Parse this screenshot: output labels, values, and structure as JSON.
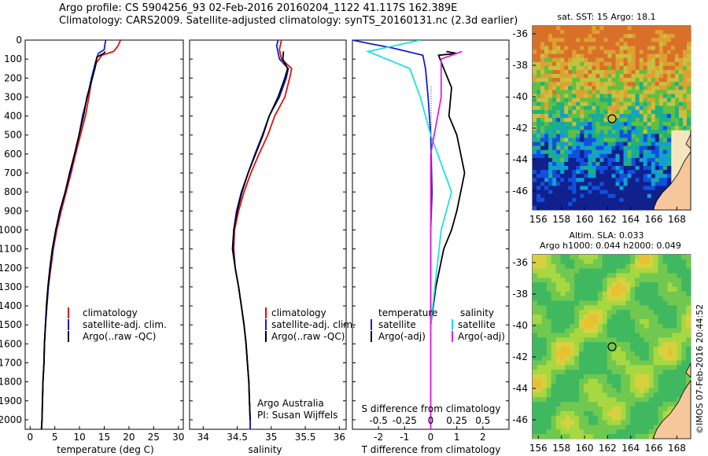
{
  "header": {
    "line1": "Argo profile: CS 5904256_93 02-Feb-2016 20160204_1122 41.117S 162.389E",
    "line2": "Climatology: CARS2009. Satellite-adjusted climatology: synTS_20160131.nc (2.3d earlier)"
  },
  "colors": {
    "climatology": "#e01010",
    "satellite": "#1020d0",
    "argo": "#000000",
    "sat_salinity": "#20e0e0",
    "argo_salinity": "#e020e0"
  },
  "chart_data": [
    {
      "id": "temperature",
      "type": "line",
      "xlabel": "temperature (deg C)",
      "xlim": [
        -1,
        31
      ],
      "xticks": [
        0,
        5,
        10,
        15,
        20,
        25,
        30
      ],
      "ylim": [
        0,
        2050
      ],
      "yticks": [
        0,
        100,
        200,
        300,
        400,
        500,
        600,
        700,
        800,
        900,
        1000,
        1100,
        1200,
        1300,
        1400,
        1500,
        1600,
        1700,
        1800,
        1900,
        2000
      ],
      "legend": [
        "climatology",
        "satellite-adj. clim.",
        "Argo(..raw -QC)"
      ],
      "series": [
        {
          "name": "climatology",
          "values": [
            [
              18.3,
              0
            ],
            [
              17.8,
              30
            ],
            [
              16.9,
              60
            ],
            [
              14.5,
              80
            ],
            [
              13.4,
              120
            ],
            [
              12.5,
              200
            ],
            [
              11.9,
              300
            ],
            [
              11.2,
              400
            ],
            [
              10.2,
              500
            ],
            [
              9.2,
              600
            ],
            [
              8.3,
              700
            ],
            [
              7.3,
              800
            ],
            [
              6.3,
              900
            ],
            [
              5.4,
              1000
            ],
            [
              4.7,
              1100
            ],
            [
              4.2,
              1200
            ],
            [
              3.7,
              1300
            ],
            [
              3.4,
              1400
            ],
            [
              3.1,
              1500
            ],
            [
              2.9,
              1600
            ],
            [
              2.8,
              1700
            ],
            [
              2.6,
              1800
            ],
            [
              2.5,
              1900
            ],
            [
              2.4,
              2000
            ],
            [
              2.3,
              2050
            ]
          ]
        },
        {
          "name": "satellite-adj. clim.",
          "values": [
            [
              15.3,
              0
            ],
            [
              15.1,
              30
            ],
            [
              15.0,
              50
            ],
            [
              13.8,
              70
            ],
            [
              13.2,
              120
            ],
            [
              12.4,
              200
            ],
            [
              11.6,
              300
            ],
            [
              10.6,
              400
            ],
            [
              9.9,
              500
            ],
            [
              9.0,
              600
            ],
            [
              8.1,
              700
            ],
            [
              7.1,
              800
            ],
            [
              6.1,
              900
            ],
            [
              5.2,
              1000
            ],
            [
              4.6,
              1100
            ],
            [
              4.1,
              1200
            ],
            [
              3.7,
              1300
            ],
            [
              3.4,
              1400
            ],
            [
              3.1,
              1500
            ],
            [
              2.9,
              1600
            ],
            [
              2.8,
              1700
            ],
            [
              2.6,
              1800
            ],
            [
              2.5,
              1900
            ],
            [
              2.4,
              2000
            ],
            [
              2.3,
              2050
            ]
          ]
        },
        {
          "name": "Argo(..raw -QC)",
          "values": [
            [
              15.2,
              60
            ],
            [
              14.9,
              70
            ],
            [
              13.5,
              90
            ],
            [
              13.1,
              150
            ],
            [
              12.3,
              230
            ],
            [
              11.5,
              300
            ],
            [
              10.8,
              400
            ],
            [
              9.9,
              500
            ],
            [
              9.0,
              600
            ],
            [
              8.0,
              700
            ],
            [
              7.1,
              800
            ],
            [
              6.0,
              900
            ],
            [
              5.2,
              1000
            ],
            [
              4.5,
              1100
            ],
            [
              4.0,
              1200
            ],
            [
              3.6,
              1300
            ],
            [
              3.3,
              1400
            ],
            [
              3.1,
              1500
            ],
            [
              2.9,
              1600
            ],
            [
              2.8,
              1700
            ],
            [
              2.6,
              1800
            ],
            [
              2.5,
              1900
            ],
            [
              2.4,
              2000
            ],
            [
              2.3,
              2050
            ]
          ]
        }
      ]
    },
    {
      "id": "salinity",
      "type": "line",
      "xlabel": "salinity",
      "xlim": [
        33.8,
        36.1
      ],
      "xticks": [
        34,
        34.5,
        35,
        35.5,
        36
      ],
      "ylim": [
        0,
        2050
      ],
      "legend": [
        "climatology",
        "satellite-adj. clim.",
        "Argo(..raw -QC)"
      ],
      "annotations": [
        "Argo Australia",
        "PI: Susan Wijffels"
      ],
      "series": [
        {
          "name": "climatology",
          "values": [
            [
              35.15,
              0
            ],
            [
              35.12,
              50
            ],
            [
              35.15,
              100
            ],
            [
              35.3,
              150
            ],
            [
              35.27,
              200
            ],
            [
              35.2,
              300
            ],
            [
              35.05,
              400
            ],
            [
              34.95,
              500
            ],
            [
              34.82,
              600
            ],
            [
              34.7,
              700
            ],
            [
              34.6,
              800
            ],
            [
              34.52,
              900
            ],
            [
              34.46,
              1000
            ],
            [
              34.45,
              1100
            ],
            [
              34.47,
              1200
            ],
            [
              34.52,
              1300
            ],
            [
              34.56,
              1400
            ],
            [
              34.6,
              1500
            ],
            [
              34.63,
              1600
            ],
            [
              34.65,
              1700
            ],
            [
              34.67,
              1800
            ],
            [
              34.68,
              1900
            ],
            [
              34.69,
              2000
            ],
            [
              34.69,
              2050
            ]
          ]
        },
        {
          "name": "satellite-adj. clim.",
          "values": [
            [
              35.1,
              0
            ],
            [
              35.08,
              30
            ],
            [
              35.12,
              100
            ],
            [
              35.25,
              150
            ],
            [
              35.22,
              200
            ],
            [
              35.12,
              300
            ],
            [
              34.97,
              400
            ],
            [
              34.87,
              500
            ],
            [
              34.76,
              600
            ],
            [
              34.66,
              700
            ],
            [
              34.56,
              800
            ],
            [
              34.49,
              900
            ],
            [
              34.45,
              1000
            ],
            [
              34.44,
              1100
            ],
            [
              34.47,
              1200
            ],
            [
              34.52,
              1300
            ],
            [
              34.56,
              1400
            ],
            [
              34.6,
              1500
            ],
            [
              34.63,
              1600
            ],
            [
              34.65,
              1700
            ],
            [
              34.67,
              1800
            ],
            [
              34.68,
              1900
            ],
            [
              34.69,
              2000
            ],
            [
              34.69,
              2050
            ]
          ]
        },
        {
          "name": "Argo(..raw -QC)",
          "values": [
            [
              35.18,
              60
            ],
            [
              35.17,
              100
            ],
            [
              35.24,
              150
            ],
            [
              35.2,
              200
            ],
            [
              35.1,
              300
            ],
            [
              34.97,
              400
            ],
            [
              34.88,
              500
            ],
            [
              34.77,
              600
            ],
            [
              34.66,
              700
            ],
            [
              34.57,
              800
            ],
            [
              34.5,
              900
            ],
            [
              34.45,
              1000
            ],
            [
              34.43,
              1100
            ],
            [
              34.47,
              1200
            ],
            [
              34.52,
              1300
            ],
            [
              34.56,
              1400
            ],
            [
              34.6,
              1500
            ],
            [
              34.63,
              1600
            ],
            [
              34.65,
              1700
            ],
            [
              34.67,
              1800
            ],
            [
              34.68,
              1900
            ],
            [
              34.69,
              2000
            ]
          ]
        }
      ]
    },
    {
      "id": "differences",
      "type": "line",
      "xlabel": "T difference from climatology",
      "xlabel_top": "S difference from climatology",
      "xlim": [
        -3,
        3
      ],
      "xticks": [
        "-2",
        "-1",
        "0",
        "1",
        "2"
      ],
      "xticks_top": [
        "-0.5",
        "-0.25",
        "0",
        "0.25",
        "0.5"
      ],
      "ylim": [
        0,
        2050
      ],
      "legend_headers": [
        "temperature",
        "salinity"
      ],
      "legend": [
        "satellite",
        "Argo(-adj)",
        "satellite",
        "Argo(-adj)"
      ],
      "series": [
        {
          "name": "satellite",
          "values": [
            [
              -3.0,
              0
            ],
            [
              -2.3,
              20
            ],
            [
              -1.5,
              40
            ],
            [
              -0.9,
              60
            ],
            [
              -0.3,
              80
            ],
            [
              -0.2,
              150
            ],
            [
              -0.1,
              300
            ],
            [
              0.0,
              500
            ],
            [
              0.05,
              800
            ],
            [
              0.0,
              1000
            ],
            [
              0.0,
              1500
            ],
            [
              0.0,
              2000
            ],
            [
              0.0,
              2050
            ]
          ]
        },
        {
          "name": "Argo(-adj)",
          "values": [
            [
              0.6,
              60
            ],
            [
              1.0,
              70
            ],
            [
              0.3,
              80
            ],
            [
              0.5,
              150
            ],
            [
              0.8,
              250
            ],
            [
              0.7,
              400
            ],
            [
              1.0,
              500
            ],
            [
              1.3,
              700
            ],
            [
              1.0,
              900
            ],
            [
              0.8,
              1000
            ],
            [
              0.5,
              1100
            ],
            [
              0.2,
              1300
            ],
            [
              0.0,
              1500
            ],
            [
              0.0,
              2000
            ]
          ]
        },
        {
          "name": "satellite",
          "values": [
            [
              -0.1,
              0
            ],
            [
              -0.6,
              60
            ],
            [
              -0.2,
              150
            ],
            [
              -0.1,
              300
            ],
            [
              0.0,
              500
            ],
            [
              0.2,
              800
            ],
            [
              0.1,
              1000
            ],
            [
              0.0,
              1500
            ],
            [
              0.0,
              2050
            ]
          ]
        },
        {
          "name": "Argo(-adj)",
          "values": [
            [
              0.3,
              60
            ],
            [
              0.1,
              100
            ],
            [
              0.1,
              300
            ],
            [
              0.0,
              600
            ],
            [
              0.0,
              1000
            ],
            [
              0.0,
              1500
            ],
            [
              0.0,
              2050
            ]
          ]
        }
      ]
    },
    {
      "id": "sst_map",
      "type": "heatmap",
      "title": "sat. SST: 15  Argo: 18.1",
      "xticks": [
        "156",
        "158",
        "160",
        "162",
        "164",
        "166",
        "168"
      ],
      "yticks": [
        "-36",
        "-38",
        "-40",
        "-42",
        "-44",
        "-46"
      ],
      "xlim": [
        155.5,
        169.2
      ],
      "ylim": [
        -47.2,
        -35.5
      ],
      "marker": [
        162.4,
        -41.1
      ]
    },
    {
      "id": "sla_map",
      "type": "heatmap",
      "title_line1": "Altim. SLA: 0.033",
      "title_line2": "Argo h1000: 0.044 h2000: 0.049",
      "xticks": [
        "156",
        "158",
        "160",
        "162",
        "164",
        "166",
        "168"
      ],
      "yticks": [
        "-36",
        "-38",
        "-40",
        "-42",
        "-44",
        "-46"
      ],
      "xlim": [
        155.5,
        169.2
      ],
      "ylim": [
        -47.2,
        -35.5
      ],
      "marker": [
        162.4,
        -41.1
      ]
    }
  ],
  "credit": "©IMOS 07-Feb-2016 20:44:52"
}
